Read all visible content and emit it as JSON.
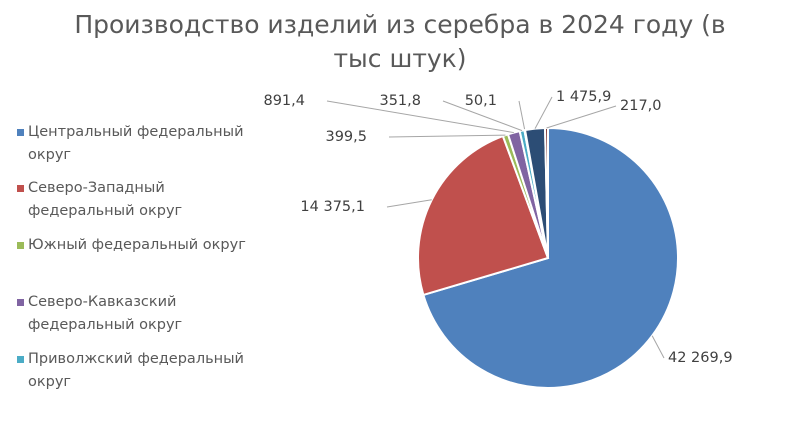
{
  "chart_data": {
    "type": "pie",
    "title": "Производство изделий из серебра в 2024 году (в тыс штук)",
    "categories": [
      "Центральный федеральный округ",
      "Северо-Западный федеральный округ",
      "Южный федеральный округ",
      "Северо-Кавказский федеральный округ",
      "Приволжский федеральный округ",
      null,
      null,
      null
    ],
    "values": [
      42269.9,
      14375.1,
      399.5,
      891.4,
      351.8,
      50.1,
      1475.9,
      217.0
    ],
    "value_labels": [
      "42 269,9",
      "14 375,1",
      "399,5",
      "891,4",
      "351,8",
      "50,1",
      "1 475,9",
      "217,0"
    ],
    "colors": [
      "#4f81bd",
      "#c0504d",
      "#9bbb59",
      "#8064a2",
      "#4bacc6",
      "#f79646",
      "#2c4d75",
      "#772c2a"
    ],
    "legend": "left"
  }
}
